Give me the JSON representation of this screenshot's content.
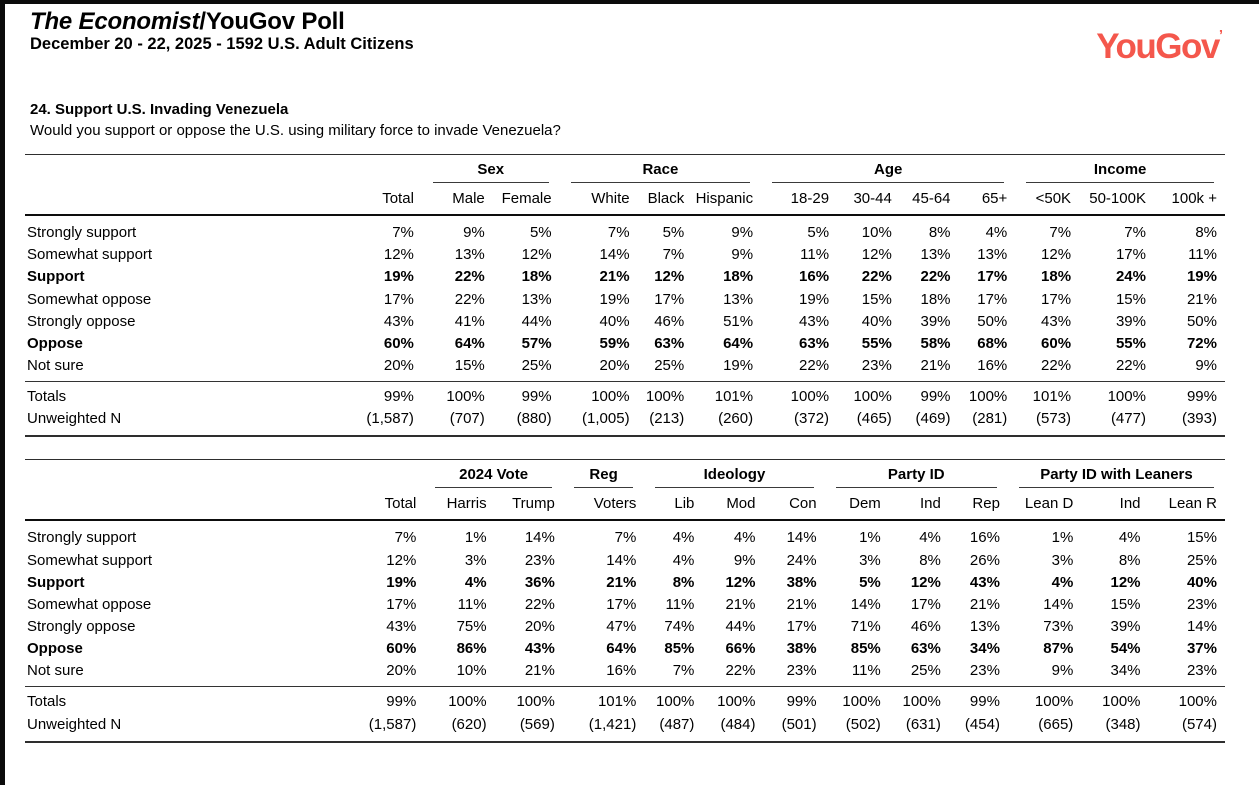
{
  "header": {
    "title_italic": "The Economist",
    "title_rest": "/YouGov Poll",
    "subtitle": "December 20 - 22, 2025 - 1592 U.S. Adult Citizens",
    "logo_text": "YouGov",
    "logo_mark": "’",
    "logo_color": "#f4574c"
  },
  "question": {
    "title": "24. Support U.S. Invading Venezuela",
    "text": "Would you support or oppose the U.S. using military force to invade Venezuela?"
  },
  "table1": {
    "groups": [
      {
        "label": "",
        "span": 2
      },
      {
        "label": "Sex",
        "span": 2
      },
      {
        "label": "Race",
        "span": 3
      },
      {
        "label": "Age",
        "span": 4
      },
      {
        "label": "Income",
        "span": 3
      }
    ],
    "columns": [
      "Total",
      "Male",
      "Female",
      "White",
      "Black",
      "Hispanic",
      "18-29",
      "30-44",
      "45-64",
      "65+",
      "<50K",
      "50-100K",
      "100k +"
    ],
    "rows": [
      {
        "label": "Strongly support",
        "bold": false,
        "values": [
          "7%",
          "9%",
          "5%",
          "7%",
          "5%",
          "9%",
          "5%",
          "10%",
          "8%",
          "4%",
          "7%",
          "7%",
          "8%"
        ]
      },
      {
        "label": "Somewhat support",
        "bold": false,
        "values": [
          "12%",
          "13%",
          "12%",
          "14%",
          "7%",
          "9%",
          "11%",
          "12%",
          "13%",
          "13%",
          "12%",
          "17%",
          "11%"
        ]
      },
      {
        "label": "Support",
        "bold": true,
        "values": [
          "19%",
          "22%",
          "18%",
          "21%",
          "12%",
          "18%",
          "16%",
          "22%",
          "22%",
          "17%",
          "18%",
          "24%",
          "19%"
        ]
      },
      {
        "label": "Somewhat oppose",
        "bold": false,
        "values": [
          "17%",
          "22%",
          "13%",
          "19%",
          "17%",
          "13%",
          "19%",
          "15%",
          "18%",
          "17%",
          "17%",
          "15%",
          "21%"
        ]
      },
      {
        "label": "Strongly oppose",
        "bold": false,
        "values": [
          "43%",
          "41%",
          "44%",
          "40%",
          "46%",
          "51%",
          "43%",
          "40%",
          "39%",
          "50%",
          "43%",
          "39%",
          "50%"
        ]
      },
      {
        "label": "Oppose",
        "bold": true,
        "values": [
          "60%",
          "64%",
          "57%",
          "59%",
          "63%",
          "64%",
          "63%",
          "55%",
          "58%",
          "68%",
          "60%",
          "55%",
          "72%"
        ]
      },
      {
        "label": "Not sure",
        "bold": false,
        "values": [
          "20%",
          "15%",
          "25%",
          "20%",
          "25%",
          "19%",
          "22%",
          "23%",
          "21%",
          "16%",
          "22%",
          "22%",
          "9%"
        ]
      }
    ],
    "totals": {
      "label": "Totals",
      "values": [
        "99%",
        "100%",
        "99%",
        "100%",
        "100%",
        "101%",
        "100%",
        "100%",
        "99%",
        "100%",
        "101%",
        "100%",
        "99%"
      ]
    },
    "unweighted": {
      "label": "Unweighted N",
      "values": [
        "(1,587)",
        "(707)",
        "(880)",
        "(1,005)",
        "(213)",
        "(260)",
        "(372)",
        "(465)",
        "(469)",
        "(281)",
        "(573)",
        "(477)",
        "(393)"
      ]
    }
  },
  "table2": {
    "groups": [
      {
        "label": "",
        "span": 2
      },
      {
        "label": "2024 Vote",
        "span": 2
      },
      {
        "label": "Reg",
        "span": 1
      },
      {
        "label": "Ideology",
        "span": 3
      },
      {
        "label": "Party ID",
        "span": 3
      },
      {
        "label": "Party ID with Leaners",
        "span": 3
      }
    ],
    "columns": [
      "Total",
      "Harris",
      "Trump",
      "Voters",
      "Lib",
      "Mod",
      "Con",
      "Dem",
      "Ind",
      "Rep",
      "Lean D",
      "Ind",
      "Lean R"
    ],
    "rows": [
      {
        "label": "Strongly support",
        "bold": false,
        "values": [
          "7%",
          "1%",
          "14%",
          "7%",
          "4%",
          "4%",
          "14%",
          "1%",
          "4%",
          "16%",
          "1%",
          "4%",
          "15%"
        ]
      },
      {
        "label": "Somewhat support",
        "bold": false,
        "values": [
          "12%",
          "3%",
          "23%",
          "14%",
          "4%",
          "9%",
          "24%",
          "3%",
          "8%",
          "26%",
          "3%",
          "8%",
          "25%"
        ]
      },
      {
        "label": "Support",
        "bold": true,
        "values": [
          "19%",
          "4%",
          "36%",
          "21%",
          "8%",
          "12%",
          "38%",
          "5%",
          "12%",
          "43%",
          "4%",
          "12%",
          "40%"
        ]
      },
      {
        "label": "Somewhat oppose",
        "bold": false,
        "values": [
          "17%",
          "11%",
          "22%",
          "17%",
          "11%",
          "21%",
          "21%",
          "14%",
          "17%",
          "21%",
          "14%",
          "15%",
          "23%"
        ]
      },
      {
        "label": "Strongly oppose",
        "bold": false,
        "values": [
          "43%",
          "75%",
          "20%",
          "47%",
          "74%",
          "44%",
          "17%",
          "71%",
          "46%",
          "13%",
          "73%",
          "39%",
          "14%"
        ]
      },
      {
        "label": "Oppose",
        "bold": true,
        "values": [
          "60%",
          "86%",
          "43%",
          "64%",
          "85%",
          "66%",
          "38%",
          "85%",
          "63%",
          "34%",
          "87%",
          "54%",
          "37%"
        ]
      },
      {
        "label": "Not sure",
        "bold": false,
        "values": [
          "20%",
          "10%",
          "21%",
          "16%",
          "7%",
          "22%",
          "23%",
          "11%",
          "25%",
          "23%",
          "9%",
          "34%",
          "23%"
        ]
      }
    ],
    "totals": {
      "label": "Totals",
      "values": [
        "99%",
        "100%",
        "100%",
        "101%",
        "100%",
        "100%",
        "99%",
        "100%",
        "100%",
        "99%",
        "100%",
        "100%",
        "100%"
      ]
    },
    "unweighted": {
      "label": "Unweighted N",
      "values": [
        "(1,587)",
        "(620)",
        "(569)",
        "(1,421)",
        "(487)",
        "(484)",
        "(501)",
        "(502)",
        "(631)",
        "(454)",
        "(665)",
        "(348)",
        "(574)"
      ]
    }
  }
}
